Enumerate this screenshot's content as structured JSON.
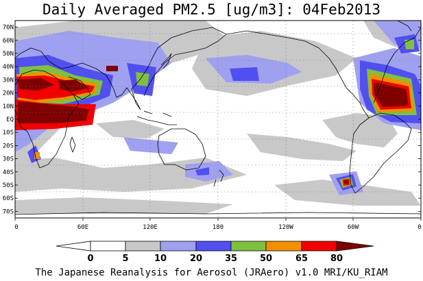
{
  "title": "Daily Averaged PM2.5 [ug/m3]: 04Feb2013",
  "footer": "The Japanese Reanalysis for Aerosol (JRAero) v1.0 MRI/KU_RIAM",
  "map": {
    "projection": "equirectangular",
    "lon_range": [
      0,
      360
    ],
    "lat_range": [
      -75,
      75
    ],
    "lat_ticks": [
      "70N",
      "60N",
      "50N",
      "40N",
      "30N",
      "20N",
      "10N",
      "EQ",
      "10S",
      "20S",
      "30S",
      "40S",
      "50S",
      "60S",
      "70S"
    ],
    "lon_ticks": [
      "0",
      "60E",
      "120E",
      "180",
      "120W",
      "60W",
      "0"
    ],
    "gridlines": "dotted",
    "background_color": "#ffffff"
  },
  "colorbar": {
    "labels": [
      "0",
      "5",
      "10",
      "20",
      "35",
      "50",
      "65",
      "80"
    ],
    "colors": [
      "#ffffff",
      "#c8c8c8",
      "#a0a0f0",
      "#5050f0",
      "#80c040",
      "#f09000",
      "#f00000",
      "#800000"
    ],
    "triangle_below": "#ffffff",
    "triangle_above": "#800000"
  }
}
